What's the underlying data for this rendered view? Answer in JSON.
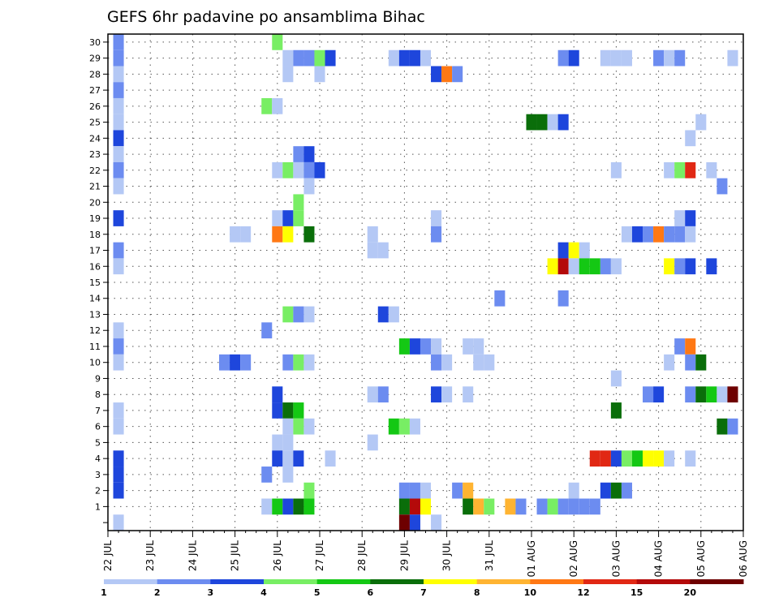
{
  "chart_data": {
    "type": "heatmap",
    "title": "GEFS 6hr padavine po ansamblima Bihac",
    "x_tick_labels": [
      "22 JUL",
      "23 JUL",
      "24 JUL",
      "25 JUL",
      "26 JUL",
      "27 JUL",
      "28 JUL",
      "29 JUL",
      "30 JUL",
      "31 JUL",
      "01 AUG",
      "02 AUG",
      "03 AUG",
      "04 AUG",
      "05 AUG",
      "06 AUG"
    ],
    "x_range_days": [
      0,
      15
    ],
    "y_tick_labels": [
      "1",
      "2",
      "3",
      "4",
      "5",
      "6",
      "7",
      "8",
      "9",
      "10",
      "11",
      "12",
      "13",
      "14",
      "15",
      "16",
      "17",
      "18",
      "19",
      "20",
      "21",
      "22",
      "23",
      "24",
      "25",
      "26",
      "27",
      "28",
      "29",
      "30"
    ],
    "y_range": [
      0,
      30
    ],
    "grid": true,
    "legend": {
      "position": "bottom",
      "labels": [
        "1",
        "2",
        "3",
        "4",
        "5",
        "6",
        "7",
        "8",
        "10",
        "12",
        "15",
        "20"
      ],
      "colors": [
        "#b4c8f5",
        "#6c8cf0",
        "#1e46dc",
        "#78ee64",
        "#14c814",
        "#0a6e0a",
        "#ffff00",
        "#ffb432",
        "#ff7814",
        "#e12814",
        "#b40a0a",
        "#6e0000"
      ]
    },
    "cells": [
      {
        "member": 30,
        "day": 0.25,
        "cat": 1
      },
      {
        "member": 30,
        "day": 4,
        "cat": 3
      },
      {
        "member": 29,
        "day": 0.25,
        "cat": 1
      },
      {
        "member": 29,
        "day": 4.25,
        "cat": 0
      },
      {
        "member": 29,
        "day": 4.5,
        "cat": 1
      },
      {
        "member": 29,
        "day": 4.75,
        "cat": 1
      },
      {
        "member": 29,
        "day": 5,
        "cat": 3
      },
      {
        "member": 29,
        "day": 5.25,
        "cat": 2
      },
      {
        "member": 29,
        "day": 6.75,
        "cat": 0
      },
      {
        "member": 29,
        "day": 7,
        "cat": 2
      },
      {
        "member": 29,
        "day": 7.25,
        "cat": 2
      },
      {
        "member": 29,
        "day": 7.5,
        "cat": 0
      },
      {
        "member": 29,
        "day": 10.75,
        "cat": 1
      },
      {
        "member": 29,
        "day": 11,
        "cat": 2
      },
      {
        "member": 29,
        "day": 11.75,
        "cat": 0
      },
      {
        "member": 29,
        "day": 12,
        "cat": 0
      },
      {
        "member": 29,
        "day": 12.25,
        "cat": 0
      },
      {
        "member": 29,
        "day": 13,
        "cat": 1
      },
      {
        "member": 29,
        "day": 13.25,
        "cat": 0
      },
      {
        "member": 29,
        "day": 13.5,
        "cat": 1
      },
      {
        "member": 29,
        "day": 14.75,
        "cat": 0
      },
      {
        "member": 28,
        "day": 0.25,
        "cat": 0
      },
      {
        "member": 28,
        "day": 4.25,
        "cat": 0
      },
      {
        "member": 28,
        "day": 5,
        "cat": 0
      },
      {
        "member": 28,
        "day": 7.75,
        "cat": 2
      },
      {
        "member": 28,
        "day": 8,
        "cat": 8
      },
      {
        "member": 28,
        "day": 8.25,
        "cat": 1
      },
      {
        "member": 27,
        "day": 0.25,
        "cat": 1
      },
      {
        "member": 26,
        "day": 0.25,
        "cat": 0
      },
      {
        "member": 26,
        "day": 3.75,
        "cat": 3
      },
      {
        "member": 26,
        "day": 4,
        "cat": 0
      },
      {
        "member": 25,
        "day": 0.25,
        "cat": 0
      },
      {
        "member": 25,
        "day": 10,
        "cat": 5
      },
      {
        "member": 25,
        "day": 10.25,
        "cat": 5
      },
      {
        "member": 25,
        "day": 10.5,
        "cat": 0
      },
      {
        "member": 25,
        "day": 10.75,
        "cat": 2
      },
      {
        "member": 25,
        "day": 14,
        "cat": 0
      },
      {
        "member": 24,
        "day": 0.25,
        "cat": 2
      },
      {
        "member": 24,
        "day": 13.75,
        "cat": 0
      },
      {
        "member": 23,
        "day": 0.25,
        "cat": 0
      },
      {
        "member": 23,
        "day": 4.5,
        "cat": 1
      },
      {
        "member": 23,
        "day": 4.75,
        "cat": 2
      },
      {
        "member": 22,
        "day": 0.25,
        "cat": 1
      },
      {
        "member": 22,
        "day": 4,
        "cat": 0
      },
      {
        "member": 22,
        "day": 4.25,
        "cat": 3
      },
      {
        "member": 22,
        "day": 4.5,
        "cat": 0
      },
      {
        "member": 22,
        "day": 4.75,
        "cat": 1
      },
      {
        "member": 22,
        "day": 5,
        "cat": 2
      },
      {
        "member": 22,
        "day": 12,
        "cat": 0
      },
      {
        "member": 22,
        "day": 13.25,
        "cat": 0
      },
      {
        "member": 22,
        "day": 13.5,
        "cat": 3
      },
      {
        "member": 22,
        "day": 13.75,
        "cat": 9
      },
      {
        "member": 22,
        "day": 14.25,
        "cat": 0
      },
      {
        "member": 21,
        "day": 0.25,
        "cat": 0
      },
      {
        "member": 21,
        "day": 4.75,
        "cat": 0
      },
      {
        "member": 21,
        "day": 14.5,
        "cat": 1
      },
      {
        "member": 20,
        "day": 4.5,
        "cat": 3
      },
      {
        "member": 19,
        "day": 0.25,
        "cat": 2
      },
      {
        "member": 19,
        "day": 4,
        "cat": 0
      },
      {
        "member": 19,
        "day": 4.25,
        "cat": 2
      },
      {
        "member": 19,
        "day": 4.5,
        "cat": 3
      },
      {
        "member": 19,
        "day": 7.75,
        "cat": 0
      },
      {
        "member": 19,
        "day": 13.5,
        "cat": 0
      },
      {
        "member": 19,
        "day": 13.75,
        "cat": 2
      },
      {
        "member": 18,
        "day": 3,
        "cat": 0
      },
      {
        "member": 18,
        "day": 3.25,
        "cat": 0
      },
      {
        "member": 18,
        "day": 4,
        "cat": 8
      },
      {
        "member": 18,
        "day": 4.25,
        "cat": 6
      },
      {
        "member": 18,
        "day": 4.75,
        "cat": 5
      },
      {
        "member": 18,
        "day": 6.25,
        "cat": 0
      },
      {
        "member": 18,
        "day": 7.75,
        "cat": 1
      },
      {
        "member": 18,
        "day": 12.25,
        "cat": 0
      },
      {
        "member": 18,
        "day": 12.5,
        "cat": 2
      },
      {
        "member": 18,
        "day": 12.75,
        "cat": 1
      },
      {
        "member": 18,
        "day": 13,
        "cat": 8
      },
      {
        "member": 18,
        "day": 13.25,
        "cat": 1
      },
      {
        "member": 18,
        "day": 13.5,
        "cat": 1
      },
      {
        "member": 18,
        "day": 13.75,
        "cat": 0
      },
      {
        "member": 17,
        "day": 0.25,
        "cat": 1
      },
      {
        "member": 17,
        "day": 6.25,
        "cat": 0
      },
      {
        "member": 17,
        "day": 6.5,
        "cat": 0
      },
      {
        "member": 17,
        "day": 10.75,
        "cat": 2
      },
      {
        "member": 17,
        "day": 11,
        "cat": 6
      },
      {
        "member": 17,
        "day": 11.25,
        "cat": 0
      },
      {
        "member": 16,
        "day": 0.25,
        "cat": 0
      },
      {
        "member": 16,
        "day": 10.5,
        "cat": 6
      },
      {
        "member": 16,
        "day": 10.75,
        "cat": 10
      },
      {
        "member": 16,
        "day": 11,
        "cat": 0
      },
      {
        "member": 16,
        "day": 11.25,
        "cat": 4
      },
      {
        "member": 16,
        "day": 11.5,
        "cat": 4
      },
      {
        "member": 16,
        "day": 11.75,
        "cat": 1
      },
      {
        "member": 16,
        "day": 12,
        "cat": 0
      },
      {
        "member": 16,
        "day": 13.25,
        "cat": 6
      },
      {
        "member": 16,
        "day": 13.5,
        "cat": 1
      },
      {
        "member": 16,
        "day": 13.75,
        "cat": 2
      },
      {
        "member": 16,
        "day": 14.25,
        "cat": 2
      },
      {
        "member": 14,
        "day": 9.25,
        "cat": 1
      },
      {
        "member": 14,
        "day": 10.75,
        "cat": 1
      },
      {
        "member": 13,
        "day": 4.25,
        "cat": 3
      },
      {
        "member": 13,
        "day": 4.5,
        "cat": 1
      },
      {
        "member": 13,
        "day": 4.75,
        "cat": 0
      },
      {
        "member": 13,
        "day": 6.5,
        "cat": 2
      },
      {
        "member": 13,
        "day": 6.75,
        "cat": 0
      },
      {
        "member": 12,
        "day": 0.25,
        "cat": 0
      },
      {
        "member": 12,
        "day": 3.75,
        "cat": 1
      },
      {
        "member": 11,
        "day": 0.25,
        "cat": 1
      },
      {
        "member": 11,
        "day": 7,
        "cat": 4
      },
      {
        "member": 11,
        "day": 7.25,
        "cat": 2
      },
      {
        "member": 11,
        "day": 7.5,
        "cat": 1
      },
      {
        "member": 11,
        "day": 7.75,
        "cat": 0
      },
      {
        "member": 11,
        "day": 8.5,
        "cat": 0
      },
      {
        "member": 11,
        "day": 8.75,
        "cat": 0
      },
      {
        "member": 11,
        "day": 13.5,
        "cat": 1
      },
      {
        "member": 11,
        "day": 13.75,
        "cat": 8
      },
      {
        "member": 10,
        "day": 0.25,
        "cat": 0
      },
      {
        "member": 10,
        "day": 2.75,
        "cat": 1
      },
      {
        "member": 10,
        "day": 3,
        "cat": 2
      },
      {
        "member": 10,
        "day": 3.25,
        "cat": 1
      },
      {
        "member": 10,
        "day": 4.25,
        "cat": 1
      },
      {
        "member": 10,
        "day": 4.5,
        "cat": 3
      },
      {
        "member": 10,
        "day": 4.75,
        "cat": 0
      },
      {
        "member": 10,
        "day": 7.75,
        "cat": 1
      },
      {
        "member": 10,
        "day": 8,
        "cat": 0
      },
      {
        "member": 10,
        "day": 8.75,
        "cat": 0
      },
      {
        "member": 10,
        "day": 9,
        "cat": 0
      },
      {
        "member": 10,
        "day": 13.25,
        "cat": 0
      },
      {
        "member": 10,
        "day": 13.75,
        "cat": 1
      },
      {
        "member": 10,
        "day": 14,
        "cat": 5
      },
      {
        "member": 9,
        "day": 12,
        "cat": 0
      },
      {
        "member": 8,
        "day": 4,
        "cat": 2
      },
      {
        "member": 8,
        "day": 6.25,
        "cat": 0
      },
      {
        "member": 8,
        "day": 6.5,
        "cat": 1
      },
      {
        "member": 8,
        "day": 7.75,
        "cat": 2
      },
      {
        "member": 8,
        "day": 8,
        "cat": 0
      },
      {
        "member": 8,
        "day": 8.5,
        "cat": 0
      },
      {
        "member": 8,
        "day": 12.75,
        "cat": 1
      },
      {
        "member": 8,
        "day": 13,
        "cat": 2
      },
      {
        "member": 8,
        "day": 13.75,
        "cat": 1
      },
      {
        "member": 8,
        "day": 14,
        "cat": 5
      },
      {
        "member": 8,
        "day": 14.25,
        "cat": 4
      },
      {
        "member": 8,
        "day": 14.5,
        "cat": 0
      },
      {
        "member": 8,
        "day": 14.75,
        "cat": 11
      },
      {
        "member": 7,
        "day": 0.25,
        "cat": 0
      },
      {
        "member": 7,
        "day": 4,
        "cat": 2
      },
      {
        "member": 7,
        "day": 4.25,
        "cat": 5
      },
      {
        "member": 7,
        "day": 4.5,
        "cat": 4
      },
      {
        "member": 7,
        "day": 12,
        "cat": 5
      },
      {
        "member": 6,
        "day": 0.25,
        "cat": 0
      },
      {
        "member": 6,
        "day": 4.25,
        "cat": 0
      },
      {
        "member": 6,
        "day": 4.5,
        "cat": 3
      },
      {
        "member": 6,
        "day": 4.75,
        "cat": 0
      },
      {
        "member": 6,
        "day": 6.75,
        "cat": 4
      },
      {
        "member": 6,
        "day": 7,
        "cat": 3
      },
      {
        "member": 6,
        "day": 7.25,
        "cat": 0
      },
      {
        "member": 6,
        "day": 14.5,
        "cat": 5
      },
      {
        "member": 6,
        "day": 14.75,
        "cat": 1
      },
      {
        "member": 5,
        "day": 4,
        "cat": 0
      },
      {
        "member": 5,
        "day": 4.25,
        "cat": 0
      },
      {
        "member": 5,
        "day": 6.25,
        "cat": 0
      },
      {
        "member": 4,
        "day": 0.25,
        "cat": 2
      },
      {
        "member": 4,
        "day": 4,
        "cat": 2
      },
      {
        "member": 4,
        "day": 4.25,
        "cat": 0
      },
      {
        "member": 4,
        "day": 4.5,
        "cat": 2
      },
      {
        "member": 4,
        "day": 5.25,
        "cat": 0
      },
      {
        "member": 4,
        "day": 11.5,
        "cat": 9
      },
      {
        "member": 4,
        "day": 11.75,
        "cat": 9
      },
      {
        "member": 4,
        "day": 12,
        "cat": 2
      },
      {
        "member": 4,
        "day": 12.25,
        "cat": 3
      },
      {
        "member": 4,
        "day": 12.5,
        "cat": 4
      },
      {
        "member": 4,
        "day": 12.75,
        "cat": 6
      },
      {
        "member": 4,
        "day": 13,
        "cat": 6
      },
      {
        "member": 4,
        "day": 13.25,
        "cat": 0
      },
      {
        "member": 4,
        "day": 13.75,
        "cat": 0
      },
      {
        "member": 3,
        "day": 0.25,
        "cat": 2
      },
      {
        "member": 3,
        "day": 3.75,
        "cat": 1
      },
      {
        "member": 3,
        "day": 4.25,
        "cat": 0
      },
      {
        "member": 2,
        "day": 0.25,
        "cat": 2
      },
      {
        "member": 2,
        "day": 4.75,
        "cat": 3
      },
      {
        "member": 2,
        "day": 7,
        "cat": 1
      },
      {
        "member": 2,
        "day": 7.25,
        "cat": 1
      },
      {
        "member": 2,
        "day": 7.5,
        "cat": 0
      },
      {
        "member": 2,
        "day": 8.25,
        "cat": 1
      },
      {
        "member": 2,
        "day": 8.5,
        "cat": 7
      },
      {
        "member": 2,
        "day": 11,
        "cat": 0
      },
      {
        "member": 2,
        "day": 11.75,
        "cat": 2
      },
      {
        "member": 2,
        "day": 12,
        "cat": 5
      },
      {
        "member": 2,
        "day": 12.25,
        "cat": 1
      },
      {
        "member": 1,
        "day": 3.75,
        "cat": 0
      },
      {
        "member": 1,
        "day": 4,
        "cat": 4
      },
      {
        "member": 1,
        "day": 4.25,
        "cat": 2
      },
      {
        "member": 1,
        "day": 4.5,
        "cat": 5
      },
      {
        "member": 1,
        "day": 4.75,
        "cat": 4
      },
      {
        "member": 1,
        "day": 7,
        "cat": 5
      },
      {
        "member": 1,
        "day": 7.25,
        "cat": 10
      },
      {
        "member": 1,
        "day": 7.5,
        "cat": 6
      },
      {
        "member": 1,
        "day": 8.5,
        "cat": 5
      },
      {
        "member": 1,
        "day": 8.75,
        "cat": 7
      },
      {
        "member": 1,
        "day": 9,
        "cat": 3
      },
      {
        "member": 1,
        "day": 9.5,
        "cat": 7
      },
      {
        "member": 1,
        "day": 9.75,
        "cat": 1
      },
      {
        "member": 1,
        "day": 10.25,
        "cat": 1
      },
      {
        "member": 1,
        "day": 10.5,
        "cat": 3
      },
      {
        "member": 1,
        "day": 10.75,
        "cat": 1
      },
      {
        "member": 1,
        "day": 11,
        "cat": 1
      },
      {
        "member": 1,
        "day": 11.25,
        "cat": 1
      },
      {
        "member": 1,
        "day": 11.5,
        "cat": 1
      },
      {
        "member": 0,
        "day": 0.25,
        "cat": 0
      },
      {
        "member": 0,
        "day": 7,
        "cat": 11
      },
      {
        "member": 0,
        "day": 7.25,
        "cat": 2
      },
      {
        "member": 0,
        "day": 7.75,
        "cat": 0
      }
    ]
  }
}
